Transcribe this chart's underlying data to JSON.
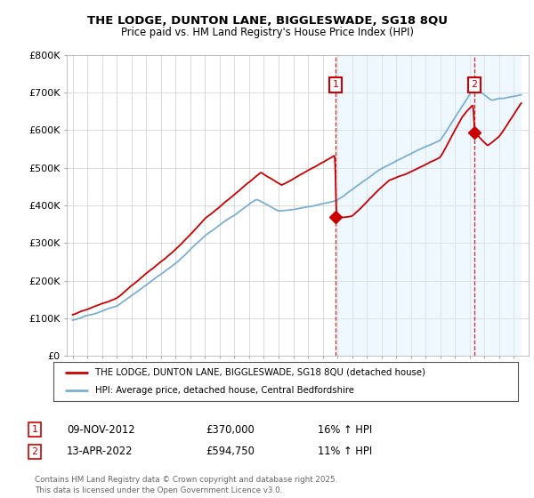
{
  "title": "THE LODGE, DUNTON LANE, BIGGLESWADE, SG18 8QU",
  "subtitle": "Price paid vs. HM Land Registry's House Price Index (HPI)",
  "legend_line1": "THE LODGE, DUNTON LANE, BIGGLESWADE, SG18 8QU (detached house)",
  "legend_line2": "HPI: Average price, detached house, Central Bedfordshire",
  "footnote": "Contains HM Land Registry data © Crown copyright and database right 2025.\nThis data is licensed under the Open Government Licence v3.0.",
  "annotation1_date": "09-NOV-2012",
  "annotation1_price": "£370,000",
  "annotation1_hpi": "16% ↑ HPI",
  "annotation2_date": "13-APR-2022",
  "annotation2_price": "£594,750",
  "annotation2_hpi": "11% ↑ HPI",
  "ylim": [
    0,
    800000
  ],
  "yticks": [
    0,
    100000,
    200000,
    300000,
    400000,
    500000,
    600000,
    700000,
    800000
  ],
  "ytick_labels": [
    "£0",
    "£100K",
    "£200K",
    "£300K",
    "£400K",
    "£500K",
    "£600K",
    "£700K",
    "£800K"
  ],
  "background_color": "#ffffff",
  "plot_bg_color": "#ffffff",
  "grid_color": "#cccccc",
  "red_color": "#cc0000",
  "blue_line_color": "#7bafd4",
  "annotation_line_color": "#cc0000",
  "annotation_box_color": "#cc0000",
  "shade_color": "#ddeeff",
  "purchase1_year": 2012.87,
  "purchase1_price": 370000,
  "purchase2_year": 2022.29,
  "purchase2_price": 594750
}
